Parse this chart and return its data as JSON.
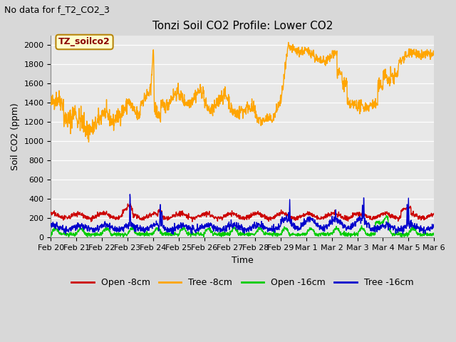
{
  "title": "Tonzi Soil CO2 Profile: Lower CO2",
  "subtitle": "No data for f_T2_CO2_3",
  "ylabel": "Soil CO2 (ppm)",
  "xlabel": "Time",
  "annotation": "TZ_soilco2",
  "ylim": [
    0,
    2100
  ],
  "yticks": [
    0,
    200,
    400,
    600,
    800,
    1000,
    1200,
    1400,
    1600,
    1800,
    2000
  ],
  "fig_bg_color": "#d8d8d8",
  "plot_bg_color": "#e8e8e8",
  "grid_color": "#ffffff",
  "line_colors": {
    "open_8cm": "#cc0000",
    "tree_8cm": "#ffa500",
    "open_16cm": "#00cc00",
    "tree_16cm": "#0000cc"
  },
  "legend_labels": [
    "Open -8cm",
    "Tree -8cm",
    "Open -16cm",
    "Tree -16cm"
  ],
  "x_tick_labels": [
    "Feb 20",
    "Feb 21",
    "Feb 22",
    "Feb 23",
    "Feb 24",
    "Feb 25",
    "Feb 26",
    "Feb 27",
    "Feb 28",
    "Feb 29",
    "Mar 1",
    "Mar 2",
    "Mar 3",
    "Mar 4",
    "Mar 5",
    "Mar 6"
  ],
  "title_fontsize": 11,
  "label_fontsize": 9,
  "tick_fontsize": 8,
  "legend_fontsize": 9,
  "subtitle_fontsize": 9,
  "annotation_fontsize": 9
}
